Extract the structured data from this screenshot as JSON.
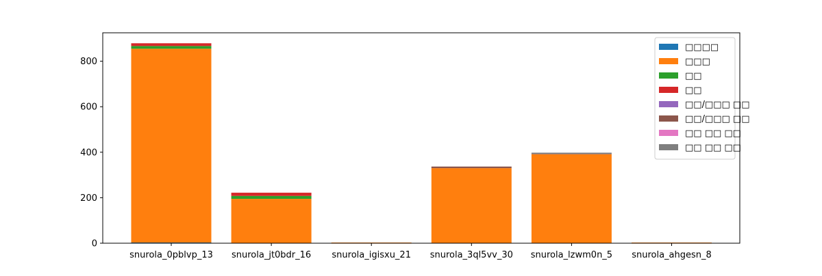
{
  "chart_data": {
    "type": "bar",
    "stacked": true,
    "title": "",
    "xlabel": "",
    "ylabel": "",
    "ylim": [
      0,
      925
    ],
    "yticks": [
      0,
      200,
      400,
      600,
      800
    ],
    "grid": false,
    "legend_position": "top-right",
    "categories": [
      "snurola_0pblvp_13",
      "snurola_jt0bdr_16",
      "snurola_igisxu_21",
      "snurola_3ql5vv_30",
      "snurola_lzwm0n_5",
      "snurola_ahgesn_8"
    ],
    "series": [
      {
        "name": "□□□□",
        "color": "#1f77b4",
        "values": [
          3,
          0,
          0,
          0,
          0,
          0
        ]
      },
      {
        "name": "□□□",
        "color": "#ff7f0e",
        "values": [
          852,
          195,
          3,
          330,
          391,
          3
        ]
      },
      {
        "name": "□□",
        "color": "#2ca02c",
        "values": [
          12,
          13,
          0,
          0,
          0,
          0
        ]
      },
      {
        "name": "□□",
        "color": "#d62728",
        "values": [
          12,
          14,
          0,
          0,
          0,
          0
        ]
      },
      {
        "name": "□□/□□□ □□",
        "color": "#9467bd",
        "values": [
          0,
          0,
          0,
          0,
          0,
          0
        ]
      },
      {
        "name": "□□/□□□ □□",
        "color": "#8c564b",
        "values": [
          0,
          0,
          0,
          7,
          2,
          0
        ]
      },
      {
        "name": "□□ □□ □□",
        "color": "#e377c2",
        "values": [
          0,
          0,
          0,
          0,
          0,
          0
        ]
      },
      {
        "name": "□□ □□ □□",
        "color": "#7f7f7f",
        "values": [
          0,
          0,
          0,
          0,
          5,
          0
        ]
      }
    ]
  }
}
